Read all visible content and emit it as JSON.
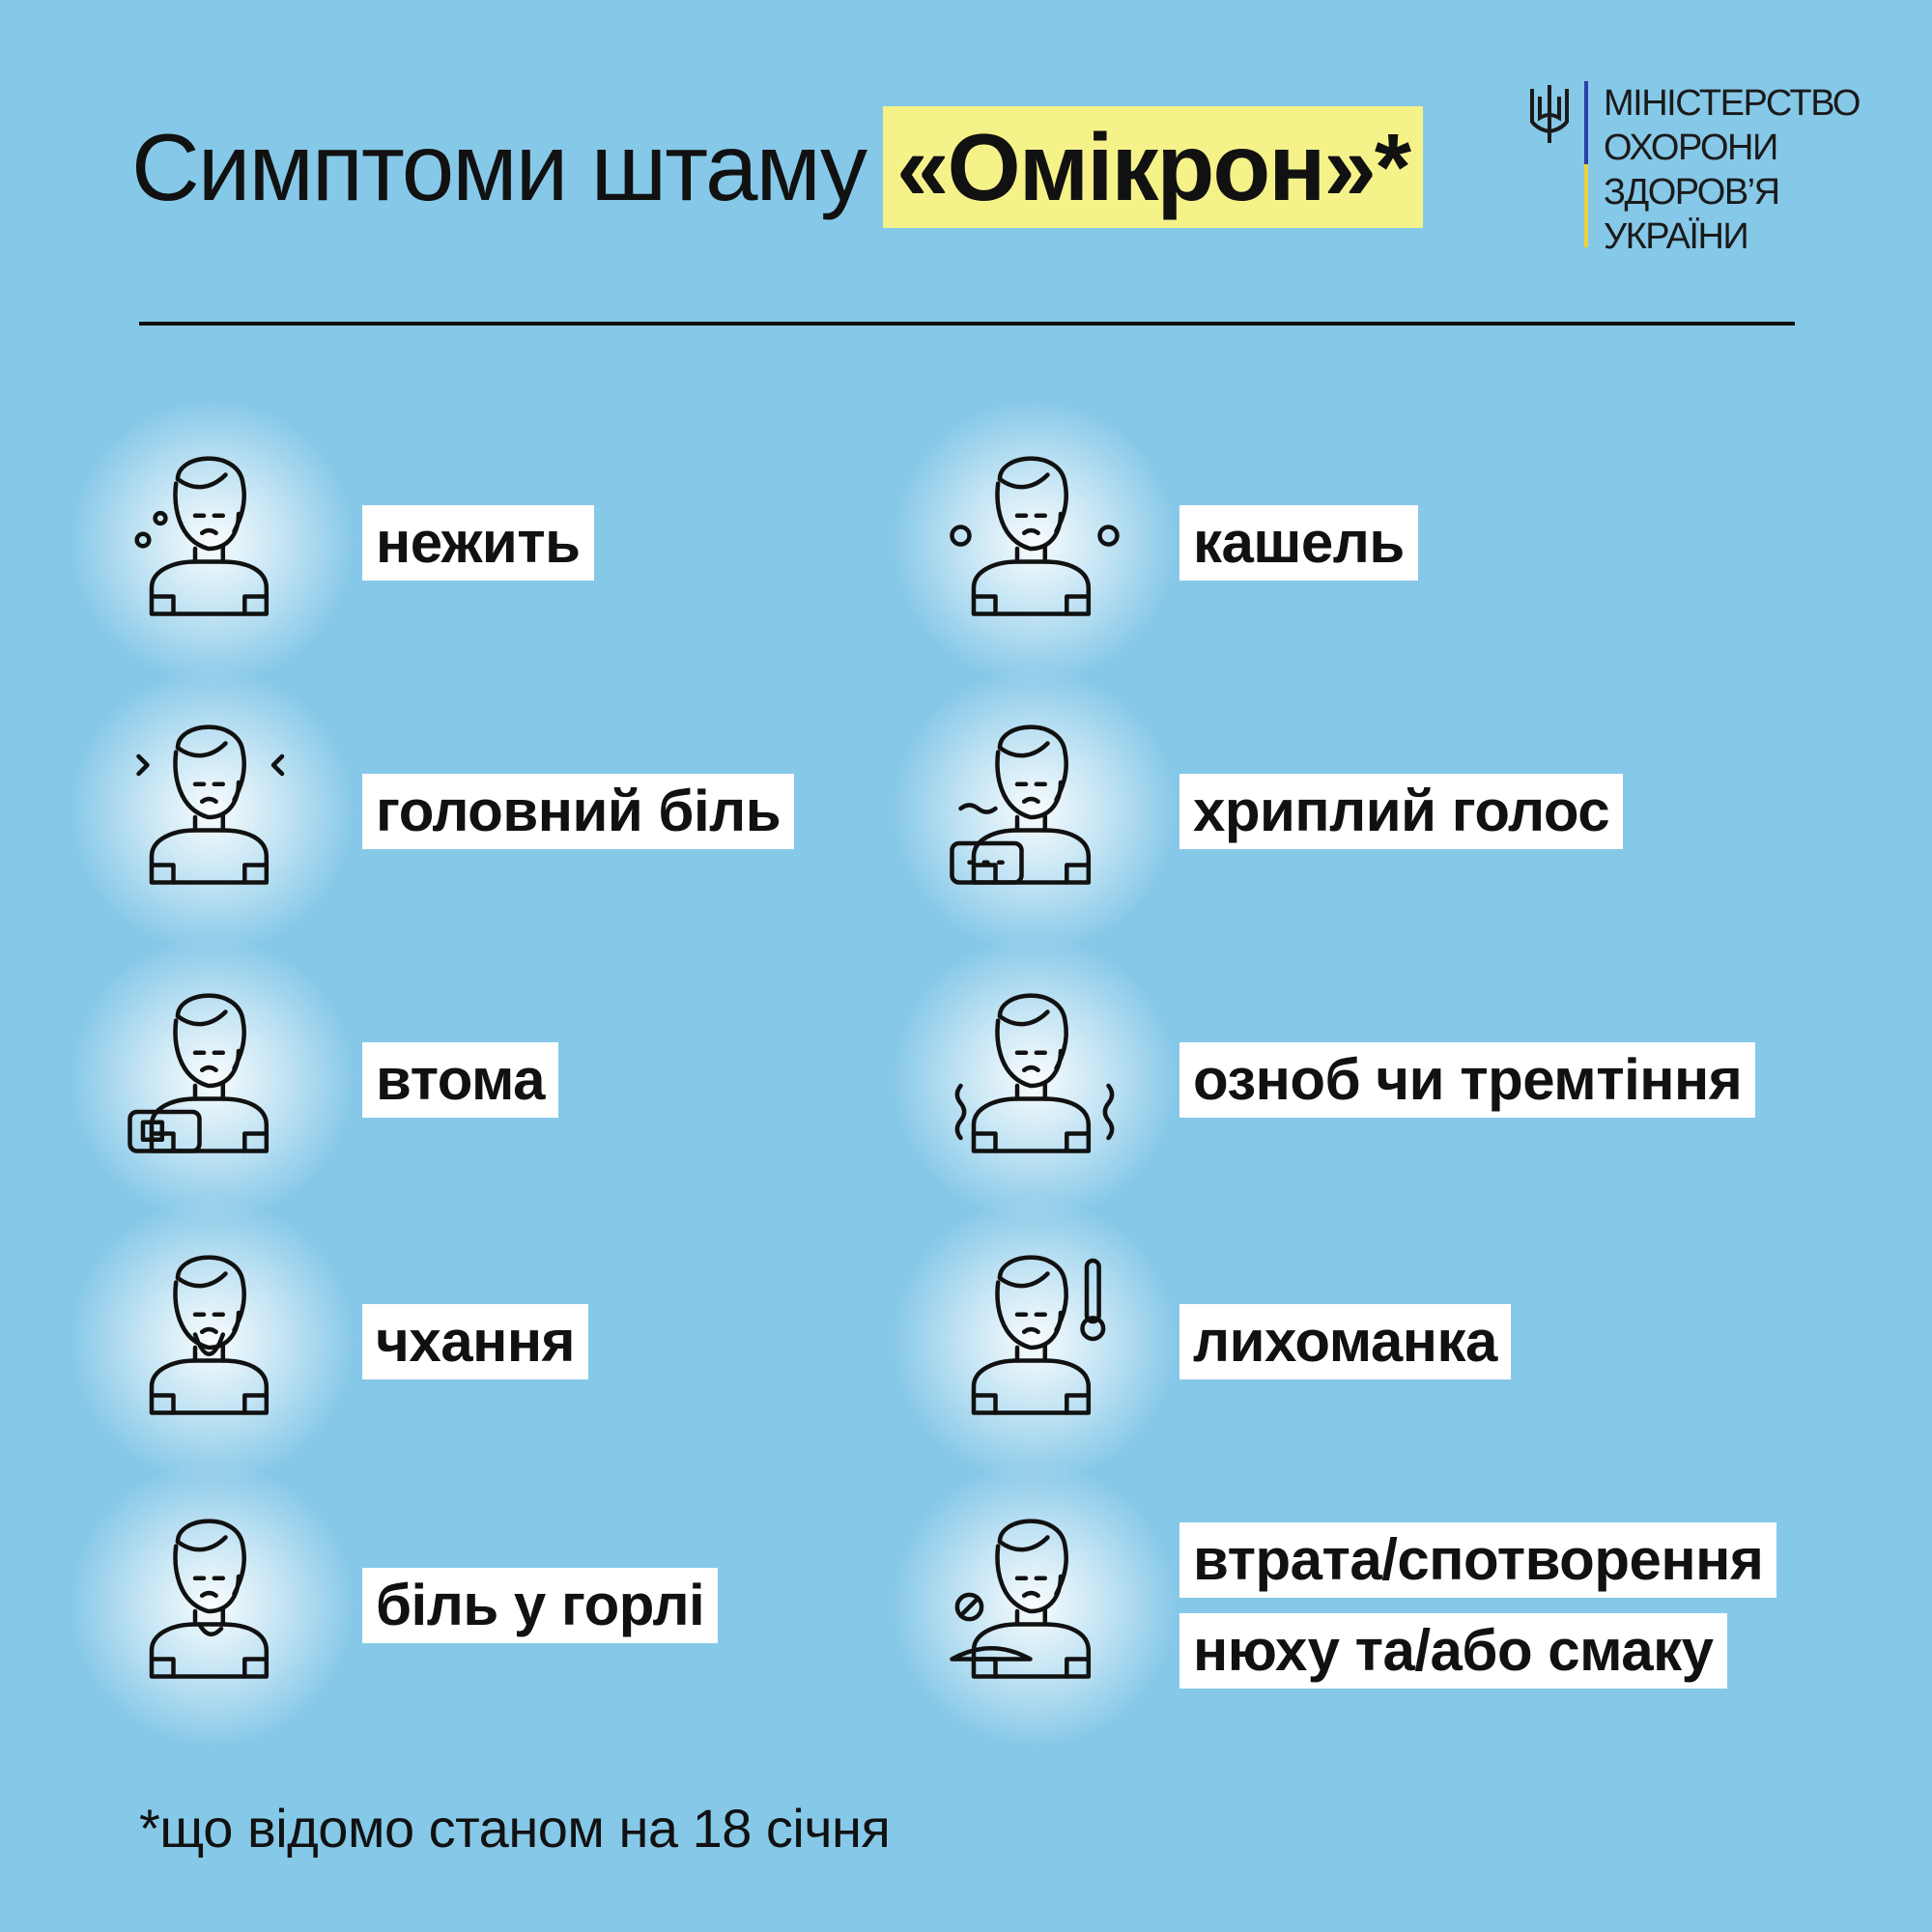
{
  "header": {
    "title_plain": "Симптоми штаму",
    "title_highlight": "«Омікрон»*",
    "highlight_color": "#f5f28a"
  },
  "logo": {
    "emblem": "trident-icon",
    "lines": [
      "МІНІСТЕРСТВО",
      "ОХОРОНИ",
      "ЗДОРОВ’Я",
      "УКРАЇНИ"
    ],
    "bar_colors": [
      "#2b3fa6",
      "#f0d23a"
    ]
  },
  "symptoms": {
    "left": [
      {
        "label": "нежить",
        "icon": "runny-nose-icon"
      },
      {
        "label": "головний біль",
        "icon": "headache-icon"
      },
      {
        "label": "втома",
        "icon": "fatigue-icon"
      },
      {
        "label": "чхання",
        "icon": "sneezing-icon"
      },
      {
        "label": "біль у горлі",
        "icon": "sore-throat-icon"
      }
    ],
    "right": [
      {
        "label": "кашель",
        "icon": "cough-icon"
      },
      {
        "label": "хриплий голос",
        "icon": "hoarse-voice-icon"
      },
      {
        "label": "озноб чи тремтіння",
        "icon": "chills-icon"
      },
      {
        "label": "лихоманка",
        "icon": "fever-icon"
      },
      {
        "label_line1": "втрата/спотворення",
        "label_line2": "нюху та/або смаку",
        "icon": "loss-of-smell-taste-icon"
      }
    ]
  },
  "footnote": "*що відомо станом на 18 січня",
  "colors": {
    "background": "#86c8e8",
    "label_bg": "#ffffff"
  }
}
